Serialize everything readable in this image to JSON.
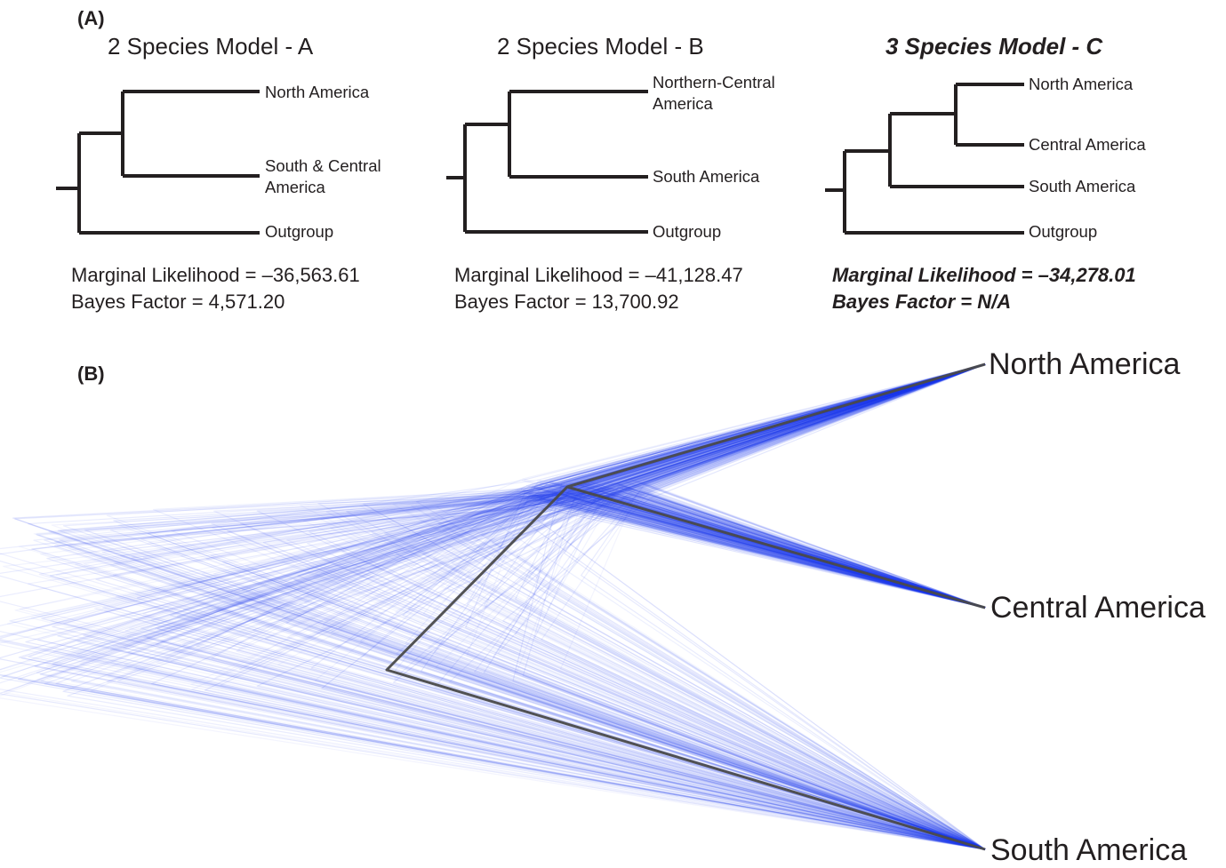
{
  "panelA": {
    "label": "(A)",
    "models": [
      {
        "title": "2 Species Model - A",
        "best": false,
        "tips": [
          "North America",
          "South & Central\nAmerica",
          "Outgroup"
        ],
        "marginal_likelihood": "Marginal Likelihood = –36,563.61",
        "bayes_factor": "Bayes Factor = 4,571.20"
      },
      {
        "title": "2 Species Model - B",
        "best": false,
        "tips": [
          "Northern-Central\nAmerica",
          "South America",
          "Outgroup"
        ],
        "marginal_likelihood": "Marginal Likelihood = –41,128.47",
        "bayes_factor": "Bayes Factor = 13,700.92"
      },
      {
        "title": "3 Species Model - C",
        "best": true,
        "tips": [
          "North America",
          "Central America",
          "South America",
          "Outgroup"
        ],
        "marginal_likelihood": "Marginal Likelihood = –34,278.01",
        "bayes_factor": "Bayes Factor = N/A"
      }
    ]
  },
  "panelB": {
    "label": "(B)",
    "tips": [
      "North America",
      "Central America",
      "South America"
    ],
    "colors": {
      "trees": "#1f3cf0",
      "consensus": "#4a4a4a"
    }
  }
}
